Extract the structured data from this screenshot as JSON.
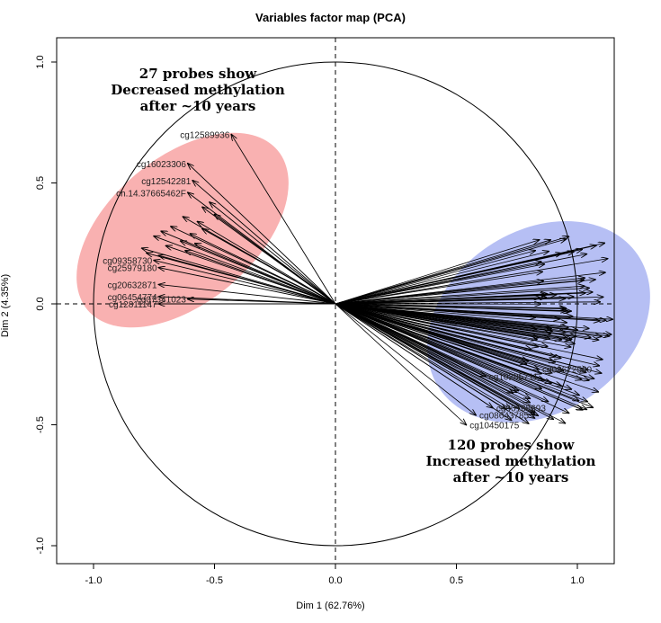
{
  "chart_data": {
    "type": "scatter",
    "title": "Variables factor map (PCA)",
    "xlabel": "Dim 1 (62.76%)",
    "ylabel": "Dim 2 (4.35%)",
    "xlim": [
      -1.15,
      1.15
    ],
    "ylim": [
      -1.08,
      1.08
    ],
    "x_ticks": [
      "-1.0",
      "-0.5",
      "0.0",
      "0.5",
      "1.0"
    ],
    "y_ticks": [
      "-1.0",
      "-0.5",
      "0.0",
      "0.5",
      "1.0"
    ],
    "annotations": {
      "decreased": [
        "27 probes show",
        "Decreased methylation",
        "after ~10 years"
      ],
      "increased": [
        "120 probes show",
        "Increased methylation",
        "after ~10 years"
      ]
    },
    "colors": {
      "decreased_ellipse": "#f89d9d",
      "increased_ellipse": "#a9b4f2",
      "arrow": "#000000"
    },
    "labeled_points": [
      {
        "label": "cg12589936",
        "x": -0.43,
        "y": 0.7
      },
      {
        "label": "cg16023306",
        "x": -0.61,
        "y": 0.58
      },
      {
        "label": "cg12542281",
        "x": -0.59,
        "y": 0.51
      },
      {
        "label": "ch.14.37665462F",
        "x": -0.61,
        "y": 0.46
      },
      {
        "label": "cg25979180",
        "x": -0.73,
        "y": 0.15
      },
      {
        "label": "cg09358730",
        "x": -0.75,
        "y": 0.18
      },
      {
        "label": "cg20632871",
        "x": -0.73,
        "y": 0.08
      },
      {
        "label": "cg06454774",
        "x": -0.73,
        "y": 0.03
      },
      {
        "label": "cg07341023",
        "x": -0.61,
        "y": 0.02
      },
      {
        "label": "cg12811147",
        "x": -0.73,
        "y": 0.0
      },
      {
        "label": "cg10285711",
        "x": 0.62,
        "y": -0.3
      },
      {
        "label": "cg00168693",
        "x": 0.65,
        "y": -0.43
      },
      {
        "label": "cg08643785",
        "x": 0.58,
        "y": -0.46
      },
      {
        "label": "cg10450175",
        "x": 0.54,
        "y": -0.5
      },
      {
        "label": "cg09672560",
        "x": 0.84,
        "y": -0.27
      }
    ],
    "decreased_vectors": [
      [
        -0.43,
        0.7
      ],
      [
        -0.61,
        0.58
      ],
      [
        -0.59,
        0.51
      ],
      [
        -0.61,
        0.46
      ],
      [
        -0.52,
        0.42
      ],
      [
        -0.55,
        0.4
      ],
      [
        -0.5,
        0.37
      ],
      [
        -0.63,
        0.36
      ],
      [
        -0.57,
        0.34
      ],
      [
        -0.68,
        0.32
      ],
      [
        -0.72,
        0.3
      ],
      [
        -0.6,
        0.29
      ],
      [
        -0.75,
        0.28
      ],
      [
        -0.64,
        0.26
      ],
      [
        -0.58,
        0.25
      ],
      [
        -0.7,
        0.24
      ],
      [
        -0.8,
        0.23
      ],
      [
        -0.62,
        0.22
      ],
      [
        -0.78,
        0.21
      ],
      [
        -0.73,
        0.2
      ],
      [
        -0.75,
        0.18
      ],
      [
        -0.73,
        0.15
      ],
      [
        -0.73,
        0.08
      ],
      [
        -0.73,
        0.03
      ],
      [
        -0.61,
        0.02
      ],
      [
        -0.73,
        0.0
      ],
      [
        -0.55,
        0.31
      ]
    ],
    "increased_cluster": {
      "x_range": [
        0.55,
        1.15
      ],
      "y_range": [
        -0.5,
        0.3
      ],
      "count": 120
    }
  }
}
